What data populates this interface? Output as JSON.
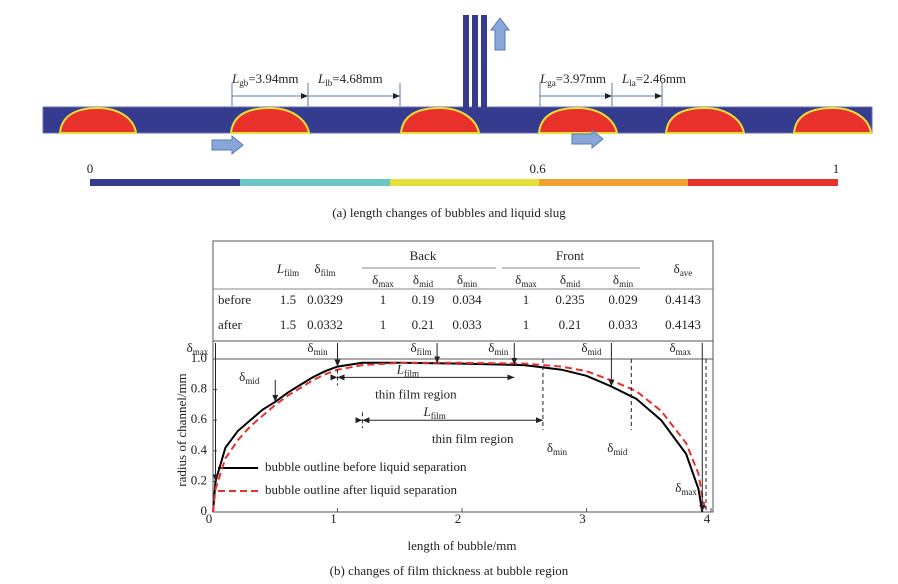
{
  "panel_a": {
    "dimensions": [
      {
        "symbol": "L",
        "sub": "gb",
        "text": "=3.94mm"
      },
      {
        "symbol": "L",
        "sub": "lb",
        "text": "=4.68mm"
      },
      {
        "symbol": "L",
        "sub": "ga",
        "text": "=3.97mm"
      },
      {
        "symbol": "L",
        "sub": "la",
        "text": "=2.46mm"
      }
    ],
    "colorbar": {
      "lim": [
        0,
        1
      ],
      "ticks": [
        0,
        0.6,
        1
      ]
    },
    "caption": "(a) length changes of bubbles and liquid slug"
  },
  "chart_data": {
    "type": "line",
    "x": [
      0,
      0.02,
      0.1,
      0.2,
      0.3,
      0.4,
      0.5,
      0.6,
      0.7,
      0.8,
      0.9,
      1.0,
      1.2,
      1.5,
      2.0,
      2.5,
      2.8,
      3.0,
      3.2,
      3.4,
      3.6,
      3.8,
      3.9,
      3.93,
      3.96
    ],
    "series": [
      {
        "name": "bubble outline before liquid separation",
        "color": "#000000",
        "dash": false,
        "values": [
          0,
          0.2,
          0.42,
          0.53,
          0.6,
          0.67,
          0.72,
          0.78,
          0.83,
          0.88,
          0.92,
          0.95,
          0.975,
          0.975,
          0.97,
          0.96,
          0.93,
          0.89,
          0.82,
          0.74,
          0.6,
          0.38,
          0.15,
          0,
          null
        ]
      },
      {
        "name": "bubble outline after liquid separation",
        "color": "#e8312a",
        "dash": true,
        "values": [
          0,
          0.15,
          0.35,
          0.47,
          0.56,
          0.63,
          0.7,
          0.76,
          0.81,
          0.86,
          0.9,
          0.93,
          0.96,
          0.975,
          0.975,
          0.97,
          0.95,
          0.92,
          0.86,
          0.79,
          0.66,
          0.45,
          0.25,
          0.1,
          0
        ]
      }
    ],
    "xlim": [
      0,
      4
    ],
    "ylim": [
      0,
      1
    ],
    "xticks": [
      0,
      1,
      2,
      3,
      4
    ],
    "yticks": [
      0,
      0.2,
      0.4,
      0.6,
      0.8,
      {
        "value": 1,
        "label": "1.0"
      }
    ],
    "xlabel": "length of bubble/mm",
    "ylabel": "radius of channel/mm",
    "caption": "(b) changes of film thickness at bubble region",
    "table": {
      "head": [
        {
          "symbol": "L",
          "sub": "film"
        },
        {
          "symbol": "δ",
          "sub": "film"
        }
      ],
      "groups": [
        {
          "name": "Back",
          "cols": [
            {
              "symbol": "δ",
              "sub": "max"
            },
            {
              "symbol": "δ",
              "sub": "mid"
            },
            {
              "symbol": "δ",
              "sub": "min"
            }
          ]
        },
        {
          "name": "Front",
          "cols": [
            {
              "symbol": "δ",
              "sub": "max"
            },
            {
              "symbol": "δ",
              "sub": "mid"
            },
            {
              "symbol": "δ",
              "sub": "min"
            }
          ]
        }
      ],
      "tail": {
        "symbol": "δ",
        "sub": "ave"
      },
      "rows": [
        {
          "name": "before",
          "values": [
            1.5,
            0.0329,
            1,
            0.19,
            0.034,
            1,
            0.235,
            0.029,
            0.4143
          ]
        },
        {
          "name": "after",
          "values": [
            1.5,
            0.0332,
            1,
            0.21,
            0.033,
            1,
            0.21,
            0.033,
            0.4143
          ]
        }
      ]
    },
    "markers": [
      {
        "symbol": "δ",
        "sub": "max",
        "x": 0.02,
        "series": 0
      },
      {
        "symbol": "δ",
        "sub": "min",
        "x": 1.0,
        "series": 0
      },
      {
        "symbol": "δ",
        "sub": "film",
        "x": 1.8,
        "series": 0
      },
      {
        "symbol": "δ",
        "sub": "min",
        "x": 2.42,
        "series": 0
      },
      {
        "symbol": "δ",
        "sub": "mid",
        "x": 3.2,
        "series": 0
      },
      {
        "symbol": "δ",
        "sub": "max",
        "x": 3.93,
        "series": 0
      },
      {
        "symbol": "δ",
        "sub": "mid",
        "x": 0.5,
        "series": 0
      },
      {
        "symbol": "δ",
        "sub": "min",
        "x": 2.65,
        "series": 1
      },
      {
        "symbol": "δ",
        "sub": "mid",
        "x": 3.36,
        "series": 1
      },
      {
        "symbol": "δ",
        "sub": "max",
        "x": 3.96,
        "series": 1
      }
    ],
    "regions": [
      {
        "symbol": "L",
        "sub": "film",
        "text": "thin film region",
        "from": 1.0,
        "to": 2.42,
        "y": 0.88
      },
      {
        "symbol": "L",
        "sub": "film",
        "text": "thin film region",
        "from": 1.2,
        "to": 2.65,
        "y": 0.6
      }
    ]
  }
}
